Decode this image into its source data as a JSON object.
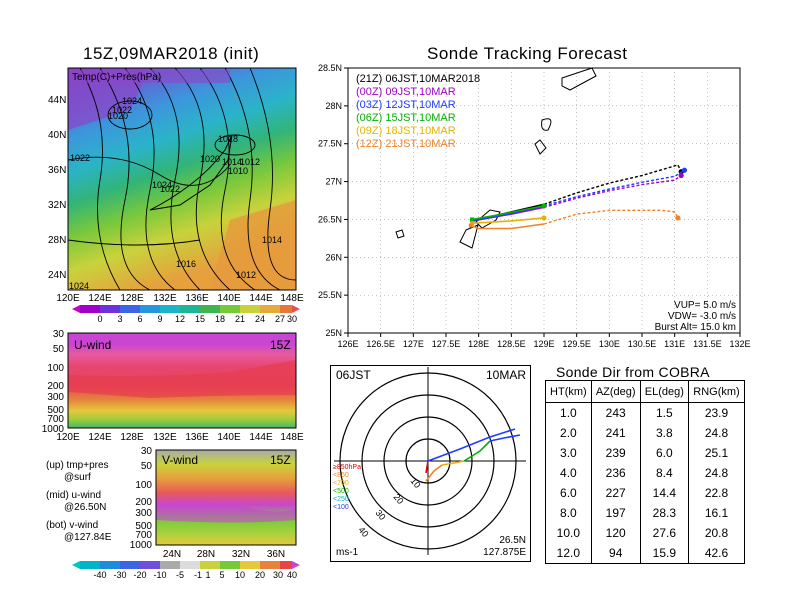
{
  "map_panel": {
    "title": "15Z,09MAR2018 (init)",
    "overlay_label": "Temp(C)+Pres(hPa)",
    "lat_labels": [
      "44N",
      "40N",
      "36N",
      "32N",
      "28N",
      "24N"
    ],
    "lon_labels": [
      "120E",
      "124E",
      "128E",
      "132E",
      "136E",
      "140E",
      "144E",
      "148E"
    ],
    "isobar_labels": [
      "1024",
      "1022",
      "1020",
      "1018",
      "1020",
      "1014",
      "1012",
      "1010",
      "1022",
      "1024",
      "1022",
      "1016",
      "1014",
      "1012",
      "1024"
    ],
    "colorbar_ticks": [
      "0",
      "3",
      "6",
      "9",
      "12",
      "15",
      "18",
      "21",
      "24",
      "27",
      "30"
    ]
  },
  "uwind_panel": {
    "label": "U-wind",
    "time": "15Z",
    "y_labels": [
      "30",
      "50",
      "100",
      "200",
      "300",
      "500",
      "700",
      "1000"
    ],
    "x_labels": [
      "120E",
      "124E",
      "128E",
      "132E",
      "136E",
      "140E",
      "144E",
      "148E"
    ]
  },
  "vwind_panel": {
    "label": "V-wind",
    "time": "15Z",
    "y_labels": [
      "30",
      "50",
      "100",
      "200",
      "300",
      "500",
      "700",
      "1000"
    ],
    "x_labels": [
      "24N",
      "28N",
      "32N",
      "36N"
    ],
    "colorbar_ticks": [
      "-40",
      "-30",
      "-20",
      "-10",
      "-5",
      "-1",
      "1",
      "5",
      "10",
      "20",
      "30",
      "40"
    ]
  },
  "notes": [
    {
      "a": "(up) tmp+pres",
      "b": "@surf"
    },
    {
      "a": "(mid) u-wind",
      "b": "@26.50N"
    },
    {
      "a": "(bot) v-wind",
      "b": "@127.84E"
    }
  ],
  "tracking": {
    "title": "Sonde Tracking Forecast",
    "legend": [
      {
        "text": "(21Z)  06JST,10MAR2018",
        "color": "#000000"
      },
      {
        "text": "(00Z)  09JST,10MAR",
        "color": "#a000c8"
      },
      {
        "text": "(03Z)  12JST,10MAR",
        "color": "#1e3cff"
      },
      {
        "text": "(06Z)  15JST,10MAR",
        "color": "#00b400"
      },
      {
        "text": "(09Z)  18JST,10MAR",
        "color": "#e6b400"
      },
      {
        "text": "(12Z)  21JST,10MAR",
        "color": "#f08228"
      }
    ],
    "info": [
      "VUP=  5.0 m/s",
      "VDW= -3.0 m/s",
      "Burst Alt=  15.0 km"
    ]
  },
  "hodo": {
    "time_label": "06JST",
    "date_label": "10MAR",
    "ring_labels": [
      "10",
      "20",
      "30",
      "40"
    ],
    "units": "ms-1",
    "lat": "26.5N",
    "lon": "127.875E",
    "legend": [
      {
        "text": "≥850hPa",
        "color": "#e60000"
      },
      {
        "text": "<850",
        "color": "#f08228"
      },
      {
        "text": "<700",
        "color": "#e6b400"
      },
      {
        "text": "<500",
        "color": "#00b400"
      },
      {
        "text": "<250",
        "color": "#00b4c8"
      },
      {
        "text": "<100",
        "color": "#1e3cff"
      }
    ]
  },
  "direction": {
    "title": "Sonde Dir from COBRA",
    "headers": [
      "HT(km)",
      "AZ(deg)",
      "EL(deg)",
      "RNG(km)"
    ]
  },
  "chart_data": [
    {
      "type": "line",
      "title": "Sonde Tracking Forecast",
      "xlabel": "",
      "ylabel": "",
      "xlim": [
        126,
        132
      ],
      "ylim": [
        25,
        28.5
      ],
      "x_ticks": [
        "126E",
        "126.5E",
        "127E",
        "127.5E",
        "128E",
        "128.5E",
        "129E",
        "129.5E",
        "130E",
        "130.5E",
        "131E",
        "131.5E",
        "132E"
      ],
      "y_ticks": [
        "25N",
        "25.5N",
        "26N",
        "26.5N",
        "27N",
        "27.5N",
        "28N",
        "28.5N"
      ],
      "grid": true,
      "series": [
        {
          "name": "(21Z) 06JST,10MAR2018",
          "color": "#000000",
          "dashed_from": 129.0,
          "x": [
            127.9,
            128.5,
            129.0,
            129.5,
            130.0,
            130.5,
            130.9,
            131.05,
            131.1
          ],
          "y": [
            26.48,
            26.6,
            26.7,
            26.85,
            26.98,
            27.08,
            27.18,
            27.22,
            27.13
          ]
        },
        {
          "name": "(00Z) 09JST,10MAR",
          "color": "#a000c8",
          "dashed_from": 129.0,
          "x": [
            127.9,
            128.5,
            129.0,
            129.5,
            130.0,
            130.5,
            131.0,
            131.1
          ],
          "y": [
            26.48,
            26.57,
            26.66,
            26.78,
            26.88,
            26.96,
            27.02,
            27.08
          ]
        },
        {
          "name": "(03Z) 12JST,10MAR",
          "color": "#1e3cff",
          "dashed_from": 129.0,
          "x": [
            127.9,
            128.5,
            129.0,
            129.5,
            130.0,
            130.5,
            131.0,
            131.15
          ],
          "y": [
            26.48,
            26.58,
            26.68,
            26.8,
            26.9,
            26.99,
            27.07,
            27.15
          ]
        },
        {
          "name": "(06Z) 15JST,10MAR",
          "color": "#00b400",
          "dashed_from": 129.0,
          "x": [
            127.9,
            128.3,
            128.7,
            129.0
          ],
          "y": [
            26.5,
            26.56,
            26.63,
            26.68
          ]
        },
        {
          "name": "(09Z) 18JST,10MAR",
          "color": "#e6b400",
          "dashed_from": 129.0,
          "x": [
            127.9,
            128.5,
            129.0
          ],
          "y": [
            26.45,
            26.48,
            26.52
          ]
        },
        {
          "name": "(12Z) 21JST,10MAR",
          "color": "#f08228",
          "dashed_from": 129.0,
          "x": [
            127.88,
            128.0,
            128.5,
            129.0,
            129.5,
            130.0,
            130.5,
            130.8,
            131.0,
            131.05
          ],
          "y": [
            26.42,
            26.38,
            26.38,
            26.44,
            26.57,
            26.62,
            26.62,
            26.62,
            26.6,
            26.52
          ]
        }
      ]
    },
    {
      "type": "table",
      "title": "Sonde Dir from COBRA",
      "columns": [
        "HT(km)",
        "AZ(deg)",
        "EL(deg)",
        "RNG(km)"
      ],
      "rows": [
        [
          "1.0",
          "243",
          "1.5",
          "23.9"
        ],
        [
          "2.0",
          "241",
          "3.8",
          "24.8"
        ],
        [
          "3.0",
          "239",
          "6.0",
          "25.1"
        ],
        [
          "4.0",
          "236",
          "8.4",
          "24.8"
        ],
        [
          "6.0",
          "227",
          "14.4",
          "22.8"
        ],
        [
          "8.0",
          "197",
          "28.3",
          "16.1"
        ],
        [
          "10.0",
          "120",
          "27.6",
          "20.8"
        ],
        [
          "12.0",
          "94",
          "15.9",
          "42.6"
        ]
      ]
    }
  ]
}
